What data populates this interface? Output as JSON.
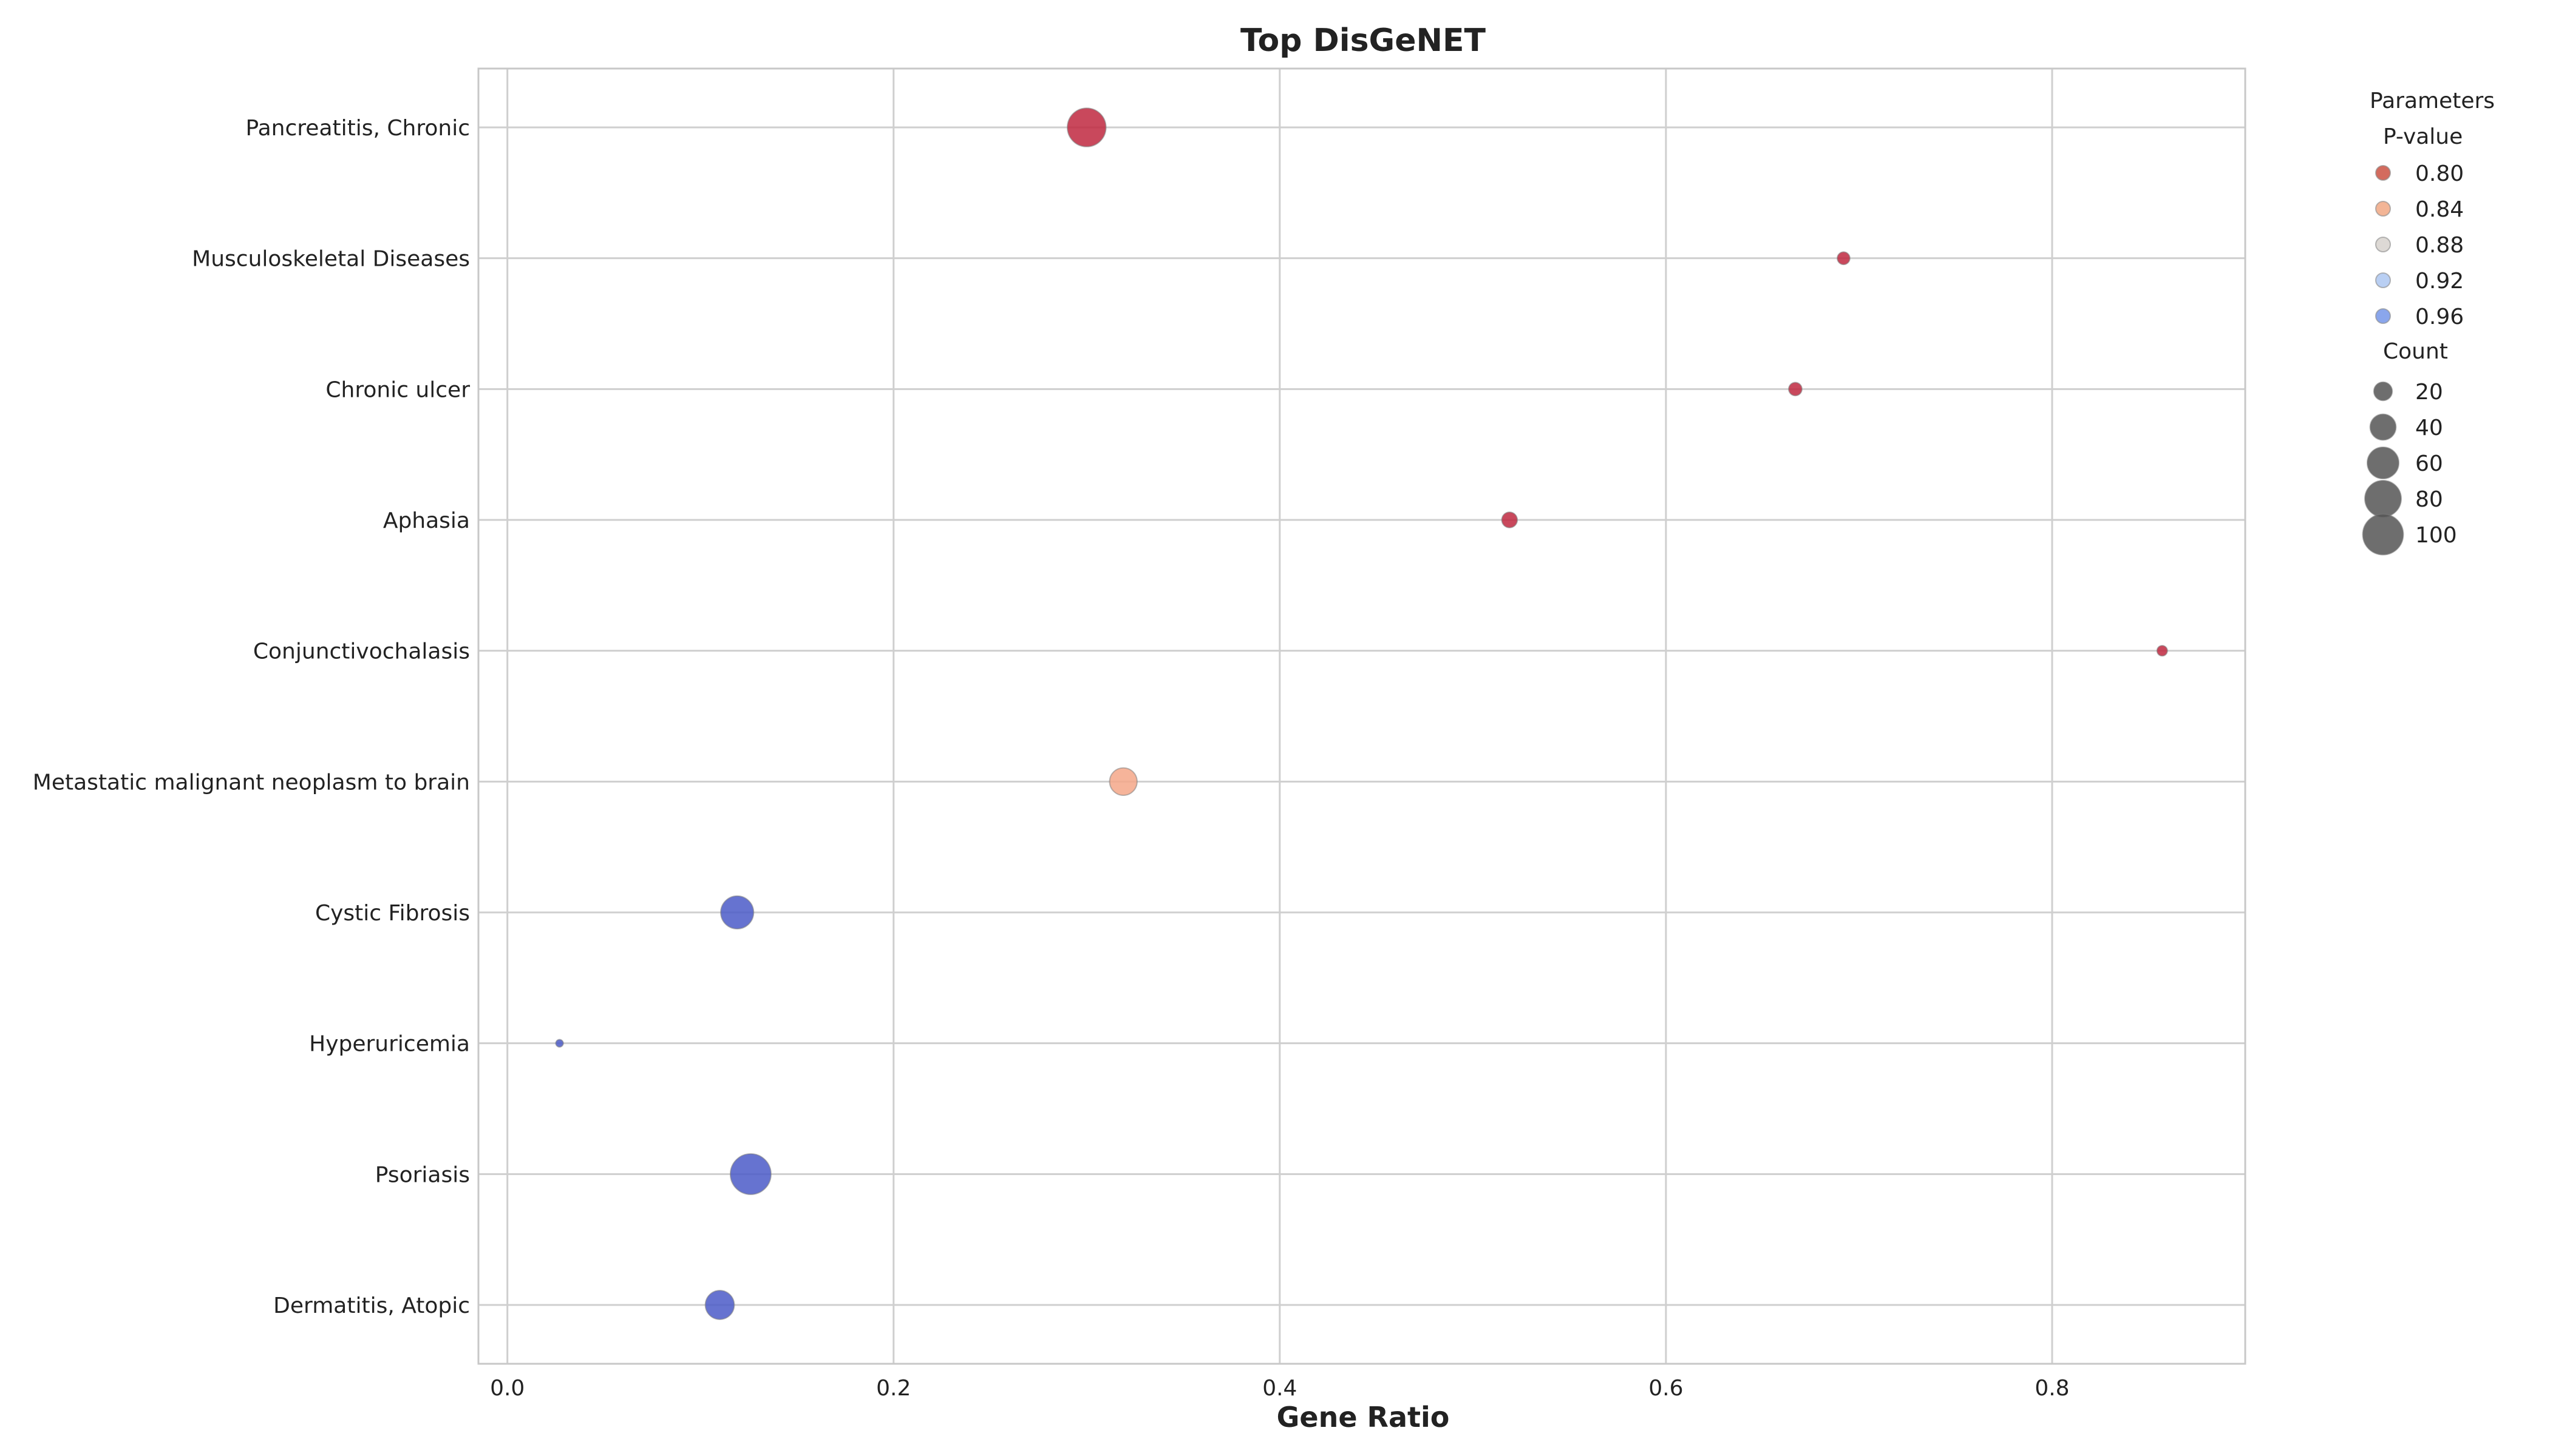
{
  "chart_data": {
    "type": "scatter",
    "title": "Top DisGeNET",
    "xlabel": "Gene Ratio",
    "ylabel": "",
    "xlim": [
      -0.015,
      0.9
    ],
    "xticks": [
      0.0,
      0.2,
      0.4,
      0.6,
      0.8
    ],
    "xtick_labels": [
      "0.0",
      "0.2",
      "0.4",
      "0.6",
      "0.8"
    ],
    "grid": true,
    "legend_position": "outside-right",
    "categories": [
      "Pancreatitis, Chronic",
      "Musculoskeletal Diseases",
      "Chronic ulcer",
      "Aphasia",
      "Conjunctivochalasis",
      "Metastatic malignant neoplasm to brain",
      "Cystic Fibrosis",
      "Hyperuricemia",
      "Psoriasis",
      "Dermatitis, Atopic"
    ],
    "points": [
      {
        "term": "Pancreatitis, Chronic",
        "gene_ratio": 0.3,
        "count": 90,
        "p_value": 0.78,
        "color": "#c0283f"
      },
      {
        "term": "Musculoskeletal Diseases",
        "gene_ratio": 0.692,
        "count": 9,
        "p_value": 0.78,
        "color": "#c0283f"
      },
      {
        "term": "Chronic ulcer",
        "gene_ratio": 0.667,
        "count": 10,
        "p_value": 0.78,
        "color": "#c0283f"
      },
      {
        "term": "Aphasia",
        "gene_ratio": 0.519,
        "count": 14,
        "p_value": 0.78,
        "color": "#c0283f"
      },
      {
        "term": "Conjunctivochalasis",
        "gene_ratio": 0.857,
        "count": 6,
        "p_value": 0.78,
        "color": "#c0283f"
      },
      {
        "term": "Metastatic malignant neoplasm to brain",
        "gene_ratio": 0.319,
        "count": 45,
        "p_value": 0.845,
        "color": "#f4a788"
      },
      {
        "term": "Cystic Fibrosis",
        "gene_ratio": 0.119,
        "count": 65,
        "p_value": 0.99,
        "color": "#4b5ac8"
      },
      {
        "term": "Hyperuricemia",
        "gene_ratio": 0.027,
        "count": 3,
        "p_value": 0.99,
        "color": "#4b5ac8"
      },
      {
        "term": "Psoriasis",
        "gene_ratio": 0.126,
        "count": 100,
        "p_value": 0.99,
        "color": "#4b5ac8"
      },
      {
        "term": "Dermatitis, Atopic",
        "gene_ratio": 0.11,
        "count": 50,
        "p_value": 0.99,
        "color": "#4b5ac8"
      }
    ],
    "legend": {
      "title": "Parameters",
      "pvalue_title": "P-value",
      "pvalue_items": [
        {
          "label": "0.80",
          "color": "#d36b5e"
        },
        {
          "label": "0.84",
          "color": "#f3b596"
        },
        {
          "label": "0.88",
          "color": "#ddd9d5"
        },
        {
          "label": "0.92",
          "color": "#b9cff3"
        },
        {
          "label": "0.96",
          "color": "#8aa6ec"
        }
      ],
      "count_title": "Count",
      "count_items": [
        {
          "label": "20",
          "value": 20
        },
        {
          "label": "40",
          "value": 40
        },
        {
          "label": "60",
          "value": 60
        },
        {
          "label": "80",
          "value": 80
        },
        {
          "label": "100",
          "value": 100
        }
      ],
      "count_color": "#555555"
    }
  }
}
